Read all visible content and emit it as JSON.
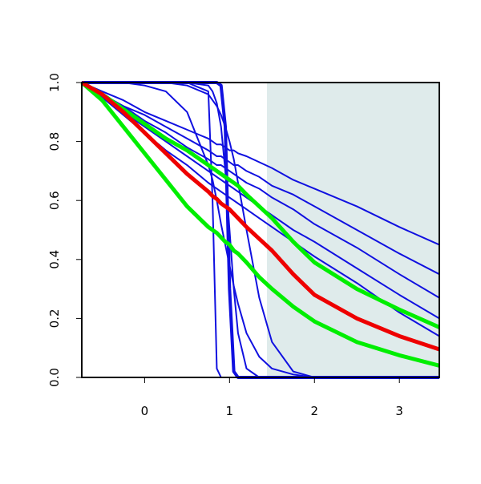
{
  "chart_data": {
    "type": "line",
    "x": [
      -0.74,
      -0.5,
      -0.25,
      0,
      0.25,
      0.5,
      0.75,
      0.8,
      0.85,
      0.9,
      0.95,
      1,
      1.05,
      1.1,
      1.2,
      1.35,
      1.5,
      1.75,
      2,
      2.5,
      3,
      3.47
    ],
    "xlim": [
      -0.74,
      3.47
    ],
    "ylim": [
      0,
      1
    ],
    "xticks": [
      0,
      1,
      2,
      3
    ],
    "yticks": [
      {
        "value": 0,
        "label": "0.0"
      },
      {
        "value": 0.2,
        "label": "0.2"
      },
      {
        "value": 0.4,
        "label": "0.4"
      },
      {
        "value": 0.6,
        "label": "0.6"
      },
      {
        "value": 0.8,
        "label": "0.8"
      },
      {
        "value": 1,
        "label": "1.0"
      }
    ],
    "shaded_x": [
      1.44,
      3.47
    ],
    "shade_color": "#dfebeb",
    "series": [
      {
        "color": "#1010e0",
        "width": 2,
        "values": [
          1,
          0.97,
          0.94,
          0.9,
          0.87,
          0.84,
          0.81,
          0.8,
          0.79,
          0.79,
          0.78,
          0.77,
          0.77,
          0.76,
          0.75,
          0.73,
          0.71,
          0.67,
          0.64,
          0.58,
          0.51,
          0.45
        ]
      },
      {
        "color": "#1010e0",
        "width": 2,
        "values": [
          1,
          0.96,
          0.92,
          0.89,
          0.85,
          0.81,
          0.77,
          0.76,
          0.75,
          0.75,
          0.74,
          0.73,
          0.72,
          0.72,
          0.7,
          0.68,
          0.65,
          0.62,
          0.58,
          0.5,
          0.42,
          0.35
        ]
      },
      {
        "color": "#1010e0",
        "width": 2,
        "values": [
          1,
          0.96,
          0.92,
          0.87,
          0.83,
          0.78,
          0.74,
          0.73,
          0.72,
          0.72,
          0.71,
          0.7,
          0.69,
          0.68,
          0.66,
          0.64,
          0.61,
          0.57,
          0.52,
          0.44,
          0.35,
          0.27
        ]
      },
      {
        "color": "#1010e0",
        "width": 2,
        "values": [
          1,
          0.95,
          0.9,
          0.85,
          0.8,
          0.75,
          0.7,
          0.69,
          0.68,
          0.67,
          0.66,
          0.65,
          0.64,
          0.63,
          0.61,
          0.58,
          0.55,
          0.5,
          0.46,
          0.37,
          0.28,
          0.2
        ]
      },
      {
        "color": "#1010e0",
        "width": 2,
        "values": [
          1,
          0.95,
          0.89,
          0.83,
          0.77,
          0.72,
          0.66,
          0.65,
          0.64,
          0.63,
          0.62,
          0.61,
          0.6,
          0.59,
          0.57,
          0.54,
          0.51,
          0.46,
          0.41,
          0.32,
          0.22,
          0.14
        ]
      },
      {
        "color": "#1010e0",
        "width": 2,
        "values": [
          1,
          1,
          1,
          1,
          1,
          1,
          0.97,
          0.6,
          0.03,
          0,
          0,
          0,
          0,
          0,
          0,
          0,
          0,
          0,
          0,
          0,
          0,
          0
        ]
      },
      {
        "color": "#1010e0",
        "width": 4,
        "values": [
          1,
          1,
          1,
          1,
          1,
          1,
          1,
          1,
          1,
          0.99,
          0.85,
          0.3,
          0.02,
          0,
          0,
          0,
          0,
          0,
          0,
          0,
          0,
          0
        ]
      },
      {
        "color": "#1010e0",
        "width": 2,
        "values": [
          1,
          1,
          1,
          1,
          1,
          1,
          0.99,
          0.97,
          0.93,
          0.85,
          0.7,
          0.5,
          0.3,
          0.15,
          0.03,
          0,
          0,
          0,
          0,
          0,
          0,
          0
        ]
      },
      {
        "color": "#1010e0",
        "width": 2,
        "values": [
          1,
          1,
          1,
          1,
          1,
          0.99,
          0.96,
          0.94,
          0.92,
          0.89,
          0.85,
          0.8,
          0.74,
          0.66,
          0.5,
          0.27,
          0.12,
          0.02,
          0,
          0,
          0,
          0
        ]
      },
      {
        "color": "#1010e0",
        "width": 2,
        "values": [
          1,
          1,
          1,
          0.99,
          0.97,
          0.9,
          0.72,
          0.67,
          0.6,
          0.52,
          0.45,
          0.38,
          0.31,
          0.25,
          0.15,
          0.07,
          0.03,
          0.01,
          0,
          0,
          0,
          0
        ]
      },
      {
        "color": "#00ee00",
        "width": 5,
        "values": [
          1,
          0.96,
          0.91,
          0.86,
          0.81,
          0.77,
          0.72,
          0.71,
          0.7,
          0.69,
          0.68,
          0.67,
          0.66,
          0.65,
          0.62,
          0.58,
          0.54,
          0.46,
          0.39,
          0.3,
          0.23,
          0.17
        ]
      },
      {
        "color": "#00ee00",
        "width": 5,
        "values": [
          1,
          0.94,
          0.85,
          0.76,
          0.67,
          0.58,
          0.51,
          0.5,
          0.49,
          0.475,
          0.46,
          0.45,
          0.43,
          0.42,
          0.39,
          0.34,
          0.3,
          0.24,
          0.19,
          0.12,
          0.075,
          0.04
        ]
      },
      {
        "color": "#ee0000",
        "width": 5,
        "values": [
          1,
          0.96,
          0.9,
          0.83,
          0.76,
          0.69,
          0.63,
          0.615,
          0.605,
          0.59,
          0.58,
          0.57,
          0.555,
          0.54,
          0.51,
          0.47,
          0.43,
          0.35,
          0.28,
          0.2,
          0.14,
          0.095
        ]
      }
    ]
  }
}
